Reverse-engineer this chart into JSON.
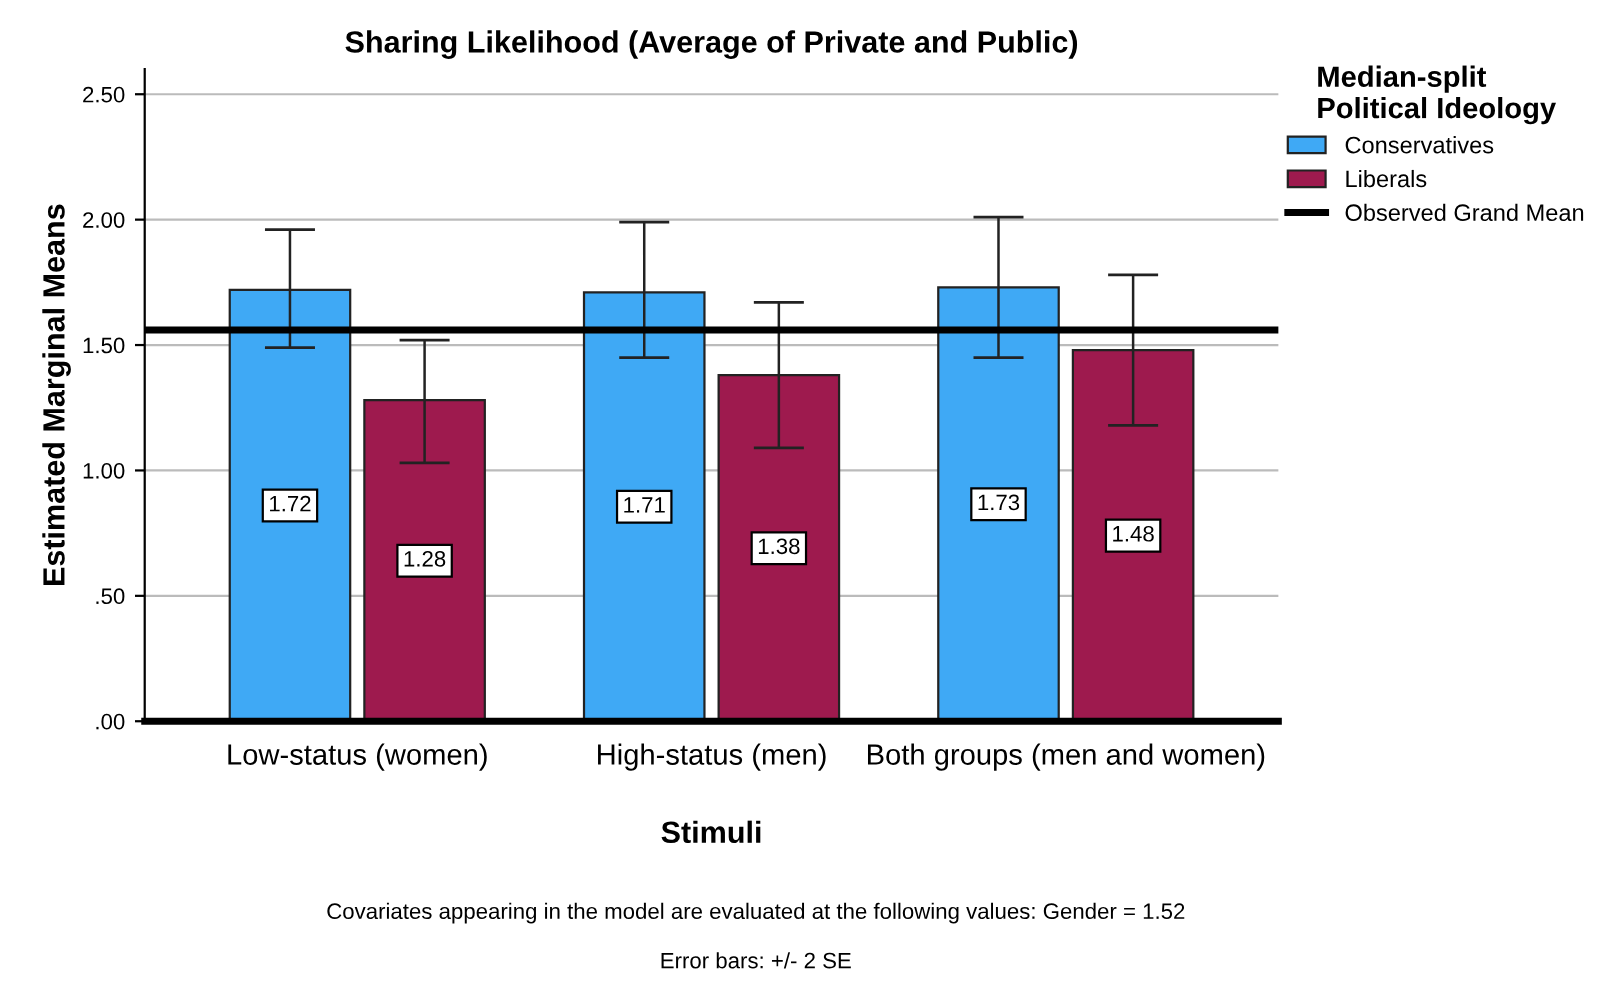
{
  "chart_data": {
    "type": "bar",
    "title": "Sharing Likelihood (Average of Private and Public)",
    "xlabel": "Stimuli",
    "ylabel": "Estimated Marginal Means",
    "legend_title": "Median-split\nPolitical Ideology",
    "categories": [
      "Low-status (women)",
      "High-status (men)",
      "Both groups (men and women)"
    ],
    "series": [
      {
        "name": "Conservatives",
        "color": "#3fa9f5",
        "values": [
          1.72,
          1.71,
          1.73
        ],
        "errors": [
          [
            1.49,
            1.96
          ],
          [
            1.45,
            1.99
          ],
          [
            1.45,
            2.01
          ]
        ],
        "value_labels": [
          "1.72",
          "1.71",
          "1.73"
        ]
      },
      {
        "name": "Liberals",
        "color": "#9e1a4e",
        "values": [
          1.28,
          1.38,
          1.48
        ],
        "errors": [
          [
            1.03,
            1.52
          ],
          [
            1.09,
            1.67
          ],
          [
            1.18,
            1.78
          ]
        ],
        "value_labels": [
          "1.28",
          "1.38",
          "1.48"
        ]
      }
    ],
    "ylim": [
      0,
      2.6
    ],
    "yticks": [
      {
        "value": 0,
        "label": ".00"
      },
      {
        "value": 0.5,
        "label": ".50"
      },
      {
        "value": 1.0,
        "label": "1.00"
      },
      {
        "value": 1.5,
        "label": "1.50"
      },
      {
        "value": 2.0,
        "label": "2.00"
      },
      {
        "value": 2.5,
        "label": "2.50"
      }
    ],
    "ref_lines": [
      {
        "axis": "y",
        "value": 1.56,
        "label": "Observed Grand Mean",
        "color": "#000000"
      }
    ],
    "grid": "y",
    "legend": "right",
    "annotations": [
      "Covariates appearing in the model are evaluated at the following values: Gender = 1.52",
      "Error bars: +/- 2 SE"
    ]
  }
}
